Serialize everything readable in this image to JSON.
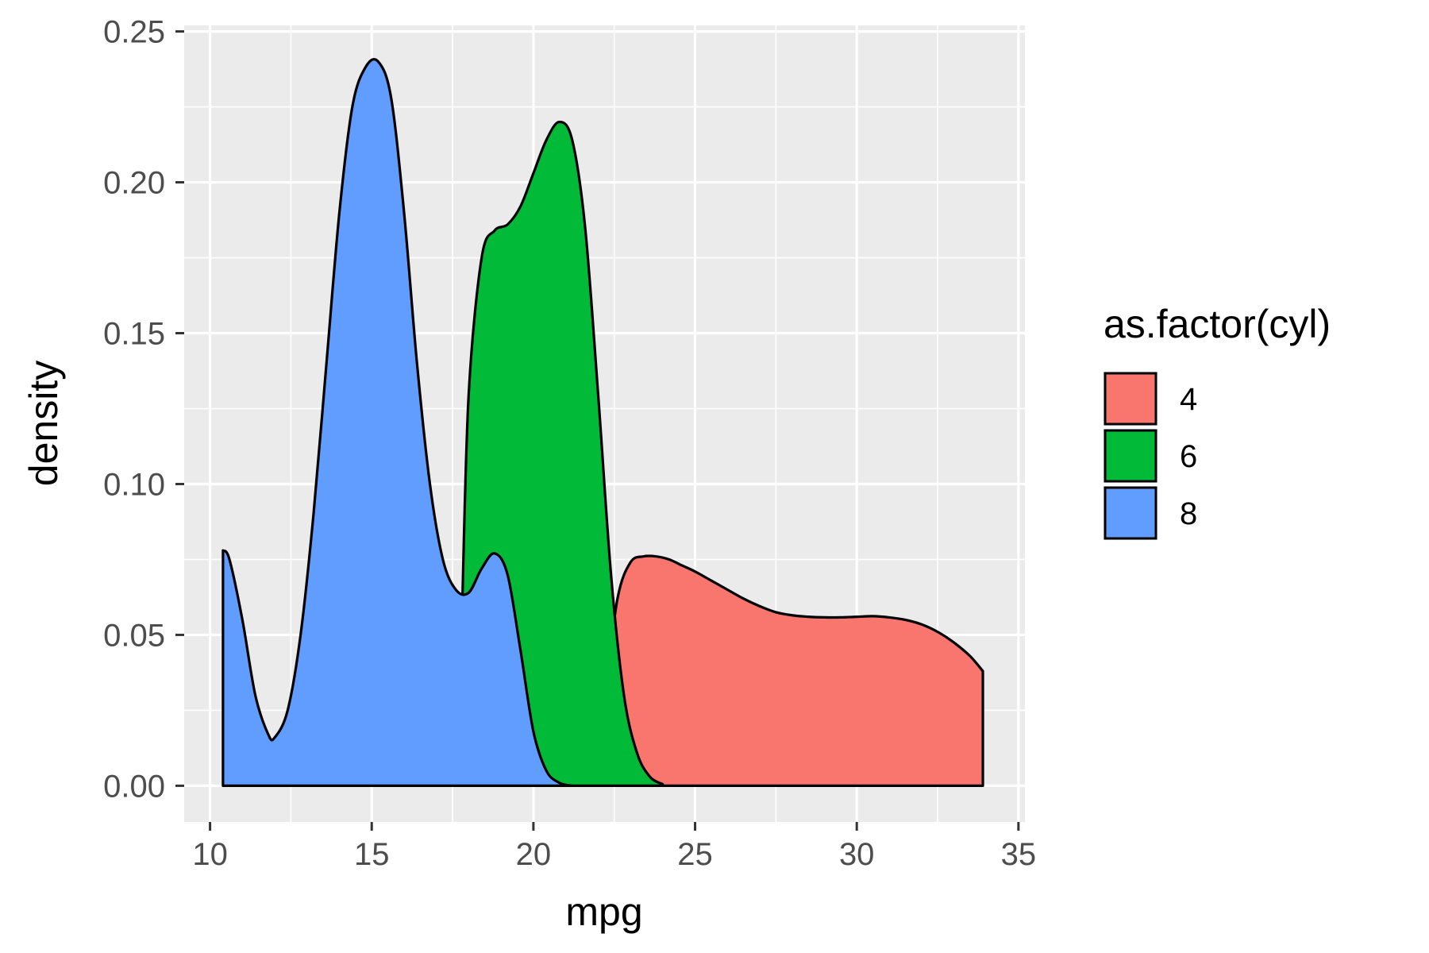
{
  "chart_data": {
    "type": "area",
    "xlabel": "mpg",
    "ylabel": "density",
    "xlim": [
      9.2,
      35.2
    ],
    "ylim": [
      -0.012,
      0.252
    ],
    "x_ticks": [
      10,
      15,
      20,
      25,
      30,
      35
    ],
    "x_tick_labels": [
      "10",
      "15",
      "20",
      "25",
      "30",
      "35"
    ],
    "y_ticks": [
      0,
      0.05,
      0.1,
      0.15,
      0.2,
      0.25
    ],
    "y_tick_labels": [
      "0.00",
      "0.05",
      "0.10",
      "0.15",
      "0.20",
      "0.25"
    ],
    "grid": true,
    "legend": {
      "title": "as.factor(cyl)",
      "position": "right",
      "entries": [
        {
          "label": "4",
          "color": "#F8766D"
        },
        {
          "label": "6",
          "color": "#00BA38"
        },
        {
          "label": "8",
          "color": "#619CFF"
        }
      ]
    },
    "series": [
      {
        "name": "4",
        "color": "#F8766D",
        "x": [
          21.4,
          21.8,
          22.2,
          22.6,
          23.0,
          23.4,
          23.8,
          24.2,
          24.6,
          25.0,
          25.5,
          26.0,
          26.5,
          27.0,
          27.5,
          28.0,
          28.5,
          29.0,
          29.5,
          30.0,
          30.5,
          31.0,
          31.5,
          32.0,
          32.5,
          33.0,
          33.5,
          33.9
        ],
        "y": [
          0.0015,
          0.008,
          0.03,
          0.062,
          0.074,
          0.076,
          0.076,
          0.075,
          0.073,
          0.071,
          0.068,
          0.065,
          0.062,
          0.0595,
          0.0575,
          0.0565,
          0.056,
          0.0558,
          0.0558,
          0.056,
          0.0562,
          0.0558,
          0.055,
          0.0535,
          0.051,
          0.0475,
          0.043,
          0.038
        ]
      },
      {
        "name": "6",
        "color": "#00BA38",
        "x": [
          17.8,
          18.0,
          18.4,
          18.8,
          19.2,
          19.6,
          20.0,
          20.4,
          20.8,
          21.2,
          21.6,
          22.0,
          22.4,
          22.8,
          23.2,
          23.6,
          24.0
        ],
        "y": [
          0.06,
          0.13,
          0.175,
          0.184,
          0.186,
          0.192,
          0.203,
          0.214,
          0.22,
          0.214,
          0.185,
          0.13,
          0.07,
          0.03,
          0.011,
          0.003,
          0.0005
        ]
      },
      {
        "name": "8",
        "color": "#619CFF",
        "x": [
          10.4,
          10.6,
          11.0,
          11.4,
          11.8,
          12.0,
          12.4,
          12.8,
          13.2,
          13.6,
          14.0,
          14.4,
          14.8,
          15.2,
          15.6,
          16.0,
          16.4,
          16.8,
          17.2,
          17.6,
          18.0,
          18.4,
          18.8,
          19.2,
          19.6,
          20.0,
          20.4,
          20.8,
          21.2
        ],
        "y": [
          0.078,
          0.075,
          0.055,
          0.03,
          0.017,
          0.016,
          0.025,
          0.05,
          0.09,
          0.14,
          0.19,
          0.225,
          0.238,
          0.24,
          0.228,
          0.19,
          0.14,
          0.1,
          0.075,
          0.065,
          0.064,
          0.072,
          0.077,
          0.07,
          0.045,
          0.018,
          0.005,
          0.001,
          0.0
        ]
      }
    ]
  }
}
